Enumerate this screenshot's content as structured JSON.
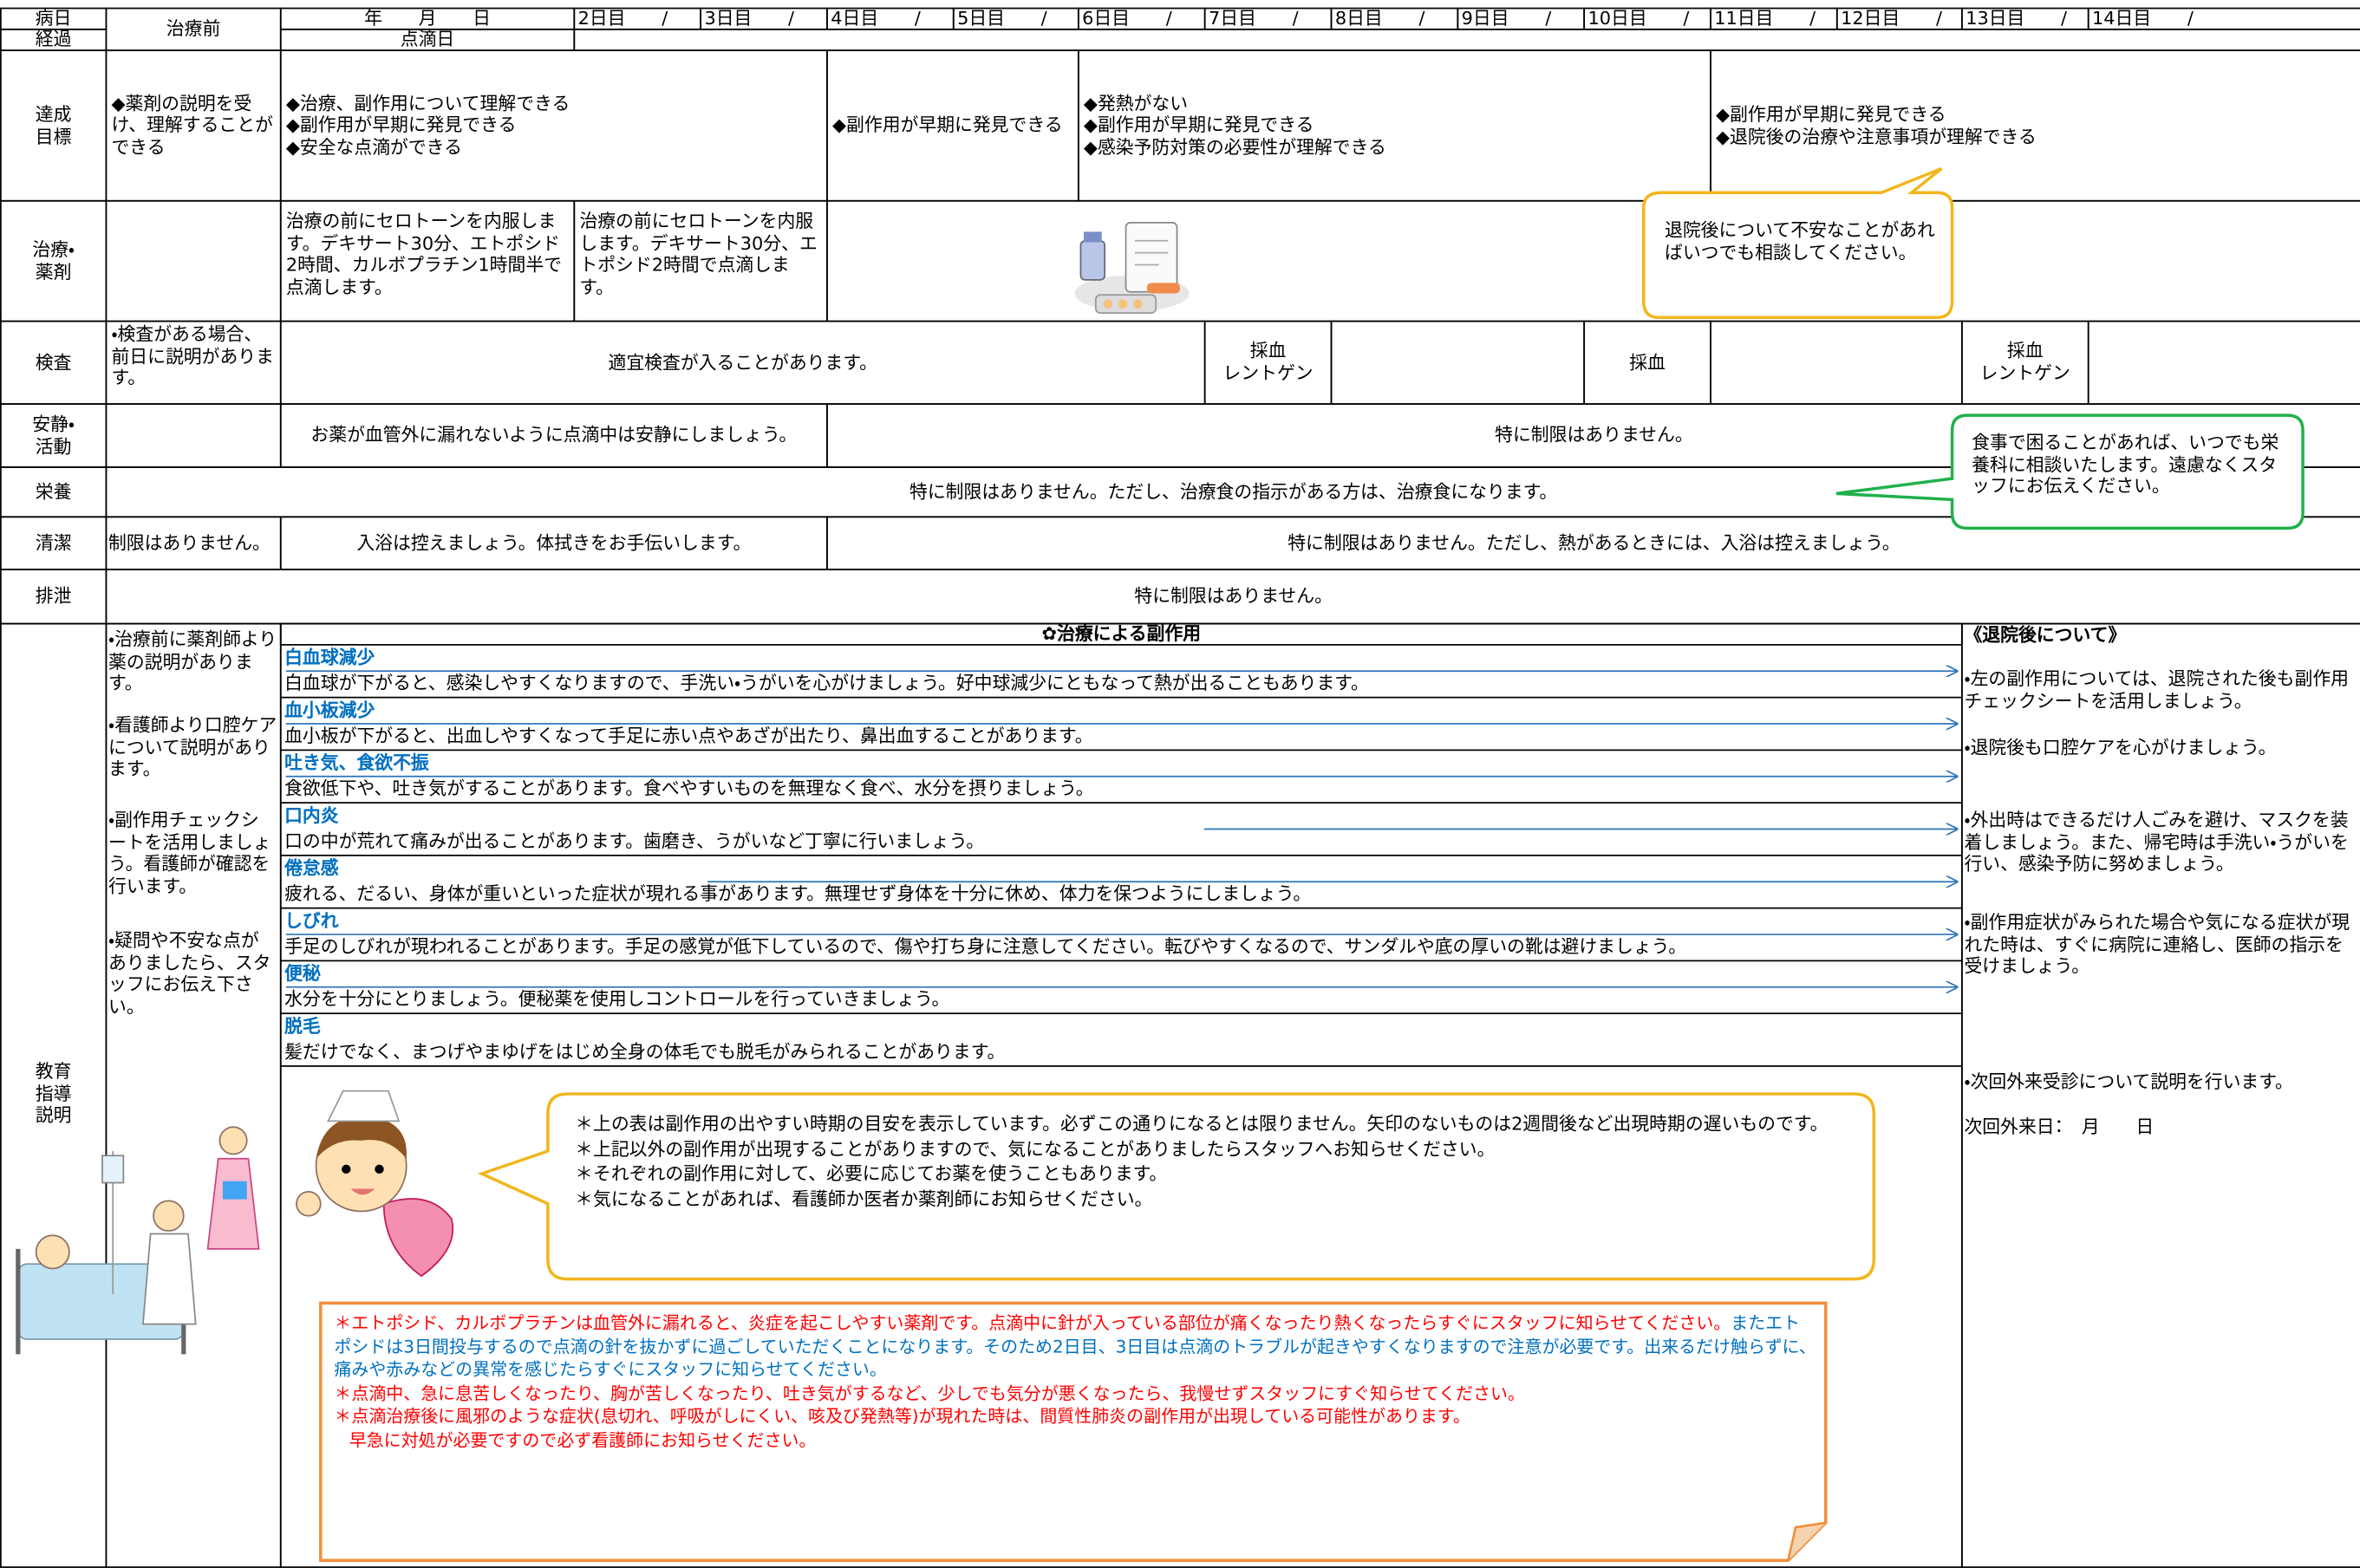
{
  "header": {
    "day_label": "病日",
    "course_label": "経過",
    "pre_treatment": "治療前",
    "date": "年　　月　　日",
    "drip_day": "点滴日",
    "days": [
      "2日目　　/",
      "3日目　　/",
      "4日目　　/",
      "5日目　　/",
      "6日目　　/",
      "7日目　　/",
      "8日目　　/",
      "9日目　　/",
      "10日目　　/",
      "11日目　　/",
      "12日目　　/",
      "13日目　　/",
      "14日目　　/"
    ]
  },
  "goals": {
    "label": "達成目標",
    "cells": [
      [
        "◆薬剤の説明を受け、理解することができる"
      ],
      [
        "◆治療、副作用について理解できる",
        "◆副作用が早期に発見できる",
        "◆安全な点滴ができる"
      ],
      [
        "◆副作用が早期に発見できる"
      ],
      [
        "◆発熱がない",
        "◆副作用が早期に発見できる",
        "◆感染予防対策の必要性が理解できる"
      ],
      [
        "◆副作用が早期に発見できる",
        "◆退院後の治療や注意事項が理解できる"
      ]
    ]
  },
  "treatment": {
    "label": "治療・薬剤",
    "cells": [
      "治療の前にセロトーンを内服します。デキサート30分、エトポシド2時間、カルボプラチン1時間半で点滴します。",
      "治療の前にセロトーンを内服します。デキサート30分、エトポシド2時間で点滴します。"
    ],
    "callout": "退院後について不安なことがあればいつでも相談してください。"
  },
  "tests": {
    "label": "検査",
    "pre": "・検査がある場合、前日に説明があります。",
    "general": "適宜検査が入ることがあります。",
    "day7": [
      "採血",
      "レントゲン"
    ],
    "day10": "採血",
    "day13": [
      "採血",
      "レントゲン"
    ]
  },
  "activity": {
    "label": "安静・活動",
    "drip": "お薬が血管外に漏れないように点滴中は安静にしましょう。",
    "other": "特に制限はありません。"
  },
  "nutrition": {
    "label": "栄養",
    "text": "特に制限はありません。ただし、治療食の指示がある方は、治療食になります。",
    "callout": "食事で困ることがあれば、いつでも栄養科に相談いたします。遠慮なくスタッフにお伝えください。"
  },
  "hygiene": {
    "label": "清潔",
    "pre": "制限はありません。",
    "drip": "入浴は控えましょう。体拭きをお手伝いします。",
    "other": "特に制限はありません。ただし、熱があるときには、入浴は控えましょう。"
  },
  "excretion": {
    "label": "排泄",
    "text": "特に制限はありません。"
  },
  "education": {
    "label": "教育指導説明",
    "pre_notes": [
      "・治療前に薬剤師より薬の説明があります。",
      "・看護師より口腔ケアについて説明があります。",
      "・副作用チェックシートを活用しましょう。看護師が確認を行います。",
      "・疑問や不安な点がありましたら、スタッフにお伝え下さい。"
    ],
    "side_effects": {
      "title": "✿治療による副作用",
      "items": [
        {
          "name": "白血球減少",
          "text": "白血球が下がると、感染しやすくなりますので、手洗い・うがいを心がけましょう。好中球減少にともなって熱が出ることもあります。"
        },
        {
          "name": "血小板減少",
          "text": "血小板が下がると、出血しやすくなって手足に赤い点やあざが出たり、鼻出血することがあります。"
        },
        {
          "name": "吐き気、食欲不振",
          "text": "食欲低下や、吐き気がすることがあります。食べやすいものを無理なく食べ、水分を摂りましょう。"
        },
        {
          "name": "口内炎",
          "text": "口の中が荒れて痛みが出ることがあります。歯磨き、うがいなど丁寧に行いましょう。"
        },
        {
          "name": "倦怠感",
          "text": "疲れる、だるい、身体が重いといった症状が現れる事があります。無理せず身体を十分に休め、体力を保つようにしましょう。"
        },
        {
          "name": "しびれ",
          "text": "手足のしびれが現われることがあります。手足の感覚が低下しているので、傷や打ち身に注意してください。転びやすくなるので、サンダルや底の厚いの靴は避けましょう。"
        },
        {
          "name": "便秘",
          "text": "水分を十分にとりましょう。便秘薬を使用しコントロールを行っていきましょう。"
        },
        {
          "name": "脱毛",
          "text": "髪だけでなく、まつげやまゆげをはじめ全身の体毛でも脱毛がみられることがあります。"
        }
      ]
    },
    "nurse_notes": [
      "＊上の表は副作用の出やすい時期の目安を表示しています。必ずこの通りになるとは限りません。矢印のないものは2週間後など出現時期の遅いものです。",
      "＊上記以外の副作用が出現することがありますので、気になることがありましたらスタッフへお知らせください。",
      "＊それぞれの副作用に対して、必要に応じてお薬を使うこともあります。",
      "＊気になることがあれば、看護師か医者か薬剤師にお知らせください。"
    ],
    "warnings": [
      "＊エトポシド、カルボプラチンは血管外に漏れると、炎症を起こしやすい薬剤です。点滴中に針が入っている部位が痛くなったり熱くなったらすぐにスタッフに知らせてください。",
      "またエトポシドは3日間投与するので点滴の針を抜かずに過ごしていただくことになります。そのため2日目、3日目は点滴のトラブルが起きやすくなりますので注意が必要です。出来るだけ触らずに、痛みや赤みなどの異常を感じたらすぐにスタッフに知らせてください。",
      "＊点滴中、急に息苦しくなったり、胸が苦しくなったり、吐き気がするなど、少しでも気分が悪くなったら、我慢せずスタッフにすぐ知らせてください。",
      "＊点滴治療後に風邪のような症状(息切れ、呼吸がしにくい、咳及び発熱等)が現れた時は、間質性肺炎の副作用が出現している可能性があります。",
      "早急に対処が必要ですので必ず看護師にお知らせください。"
    ],
    "discharge": {
      "title": "《退院後について》",
      "notes": [
        "・左の副作用については、退院された後も副作用チェックシートを活用しましょう。",
        "・退院後も口腔ケアを心がけましょう。",
        "・外出時はできるだけ人ごみを避け、マスクを装着しましょう。また、帰宅時は手洗い・うがいを行い、感染予防に努めましょう。",
        "・副作用症状がみられた場合や気になる症状が現れた時は、すぐに病院に連絡し、医師の指示を受けましょう。",
        "・次回外来受診について説明を行います。"
      ],
      "next_visit": "次回外来日：　月　　日"
    }
  }
}
